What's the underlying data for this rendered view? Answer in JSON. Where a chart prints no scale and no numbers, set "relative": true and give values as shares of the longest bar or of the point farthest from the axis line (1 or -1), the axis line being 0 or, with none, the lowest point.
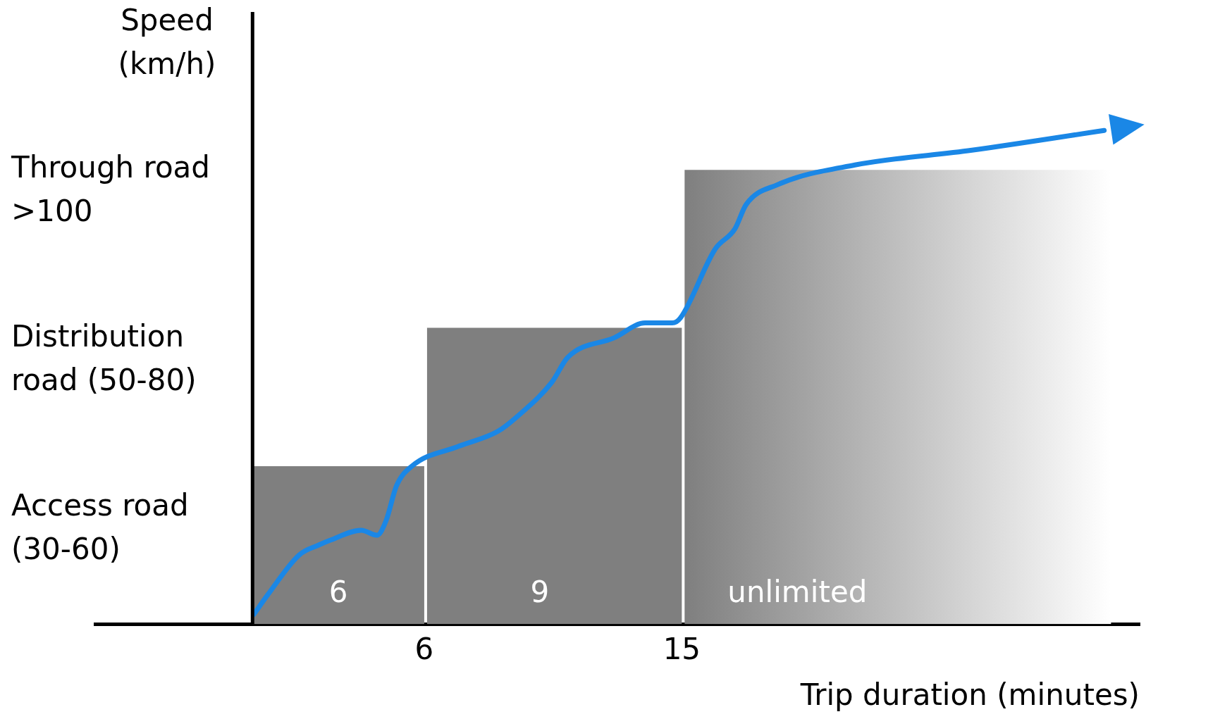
{
  "chart_data": {
    "type": "histogram",
    "ylabel": "Speed (km/h)",
    "xlabel": "Trip duration (minutes)",
    "relative": true,
    "tick_labels": "x",
    "bins": [
      0,
      6,
      15,
      30
    ],
    "values": [
      0.32,
      0.6,
      0.92
    ],
    "colors": [
      "#7f7f7f",
      "#7f7f7f",
      "#7f7f7f"
    ],
    "xlim": [
      -5.5,
      31
    ],
    "xticks": [
      6,
      15
    ],
    "series": [
      {
        "type": "line",
        "color": "#1a87e6",
        "x": [
          0.05,
          0.54,
          1.63,
          2.31,
          2.72,
          3.8,
          4.35,
          4.67,
          5.03,
          5.57,
          7.2,
          8.56,
          9.24,
          10.46,
          11.01,
          12.64,
          13.72,
          14.67,
          14.95,
          16.17,
          16.85,
          17.25,
          18.34,
          21.05,
          25.14,
          29.76
        ],
        "values": [
          0.02,
          0.06,
          0.14,
          0.16,
          0.17,
          0.19,
          0.18,
          0.21,
          0.28,
          0.32,
          0.36,
          0.39,
          0.42,
          0.49,
          0.54,
          0.58,
          0.61,
          0.61,
          0.62,
          0.76,
          0.8,
          0.85,
          0.89,
          0.93,
          0.96,
          1
        ]
      }
    ],
    "annotations": [
      "Through road >100",
      "Distribution road (50-80)",
      "Access road (30-60)",
      "6",
      "9",
      "unlimited"
    ]
  }
}
